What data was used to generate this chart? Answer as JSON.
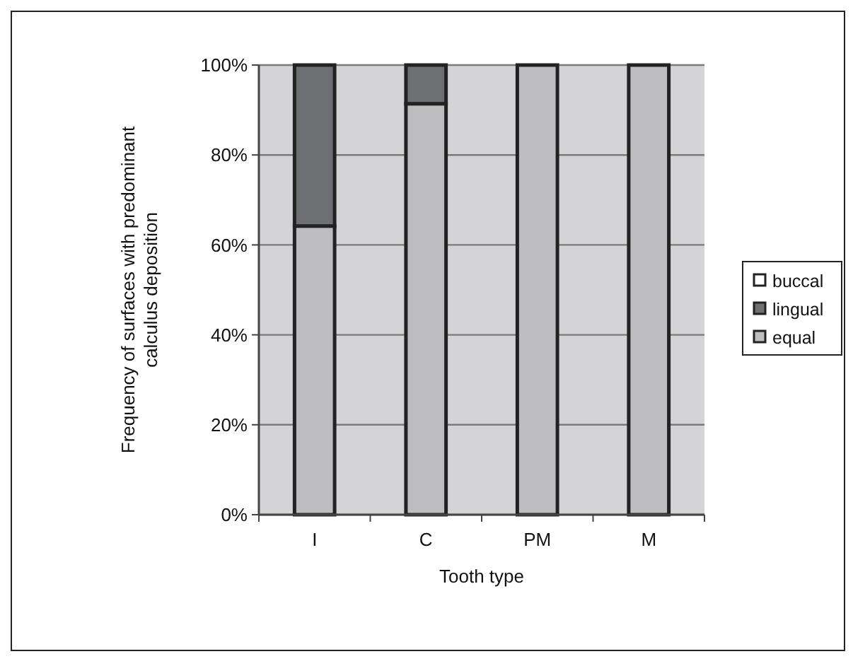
{
  "chart_data": {
    "type": "bar",
    "stacked": true,
    "xlabel": "Tooth type",
    "ylabel": "Frequency of surfaces with predominant calculus deposition",
    "categories": [
      "I",
      "C",
      "PM",
      "M"
    ],
    "series": [
      {
        "name": "equal",
        "color": "#bdbdc0",
        "values": [
          64.2,
          91.4,
          100,
          100
        ]
      },
      {
        "name": "lingual",
        "color": "#6e6f73",
        "values": [
          35.8,
          8.6,
          0,
          0
        ]
      },
      {
        "name": "buccal",
        "color": "#ffffff",
        "values": [
          0,
          0,
          0,
          0
        ]
      }
    ],
    "ylim": [
      0,
      100
    ],
    "yticks": [
      {
        "value": 0,
        "label": "0%"
      },
      {
        "value": 20,
        "label": "20%"
      },
      {
        "value": 40,
        "label": "40%"
      },
      {
        "value": 60,
        "label": "60%"
      },
      {
        "value": 80,
        "label": "80%"
      },
      {
        "value": 100,
        "label": "100%"
      }
    ],
    "grid": "y",
    "legend": "right"
  }
}
